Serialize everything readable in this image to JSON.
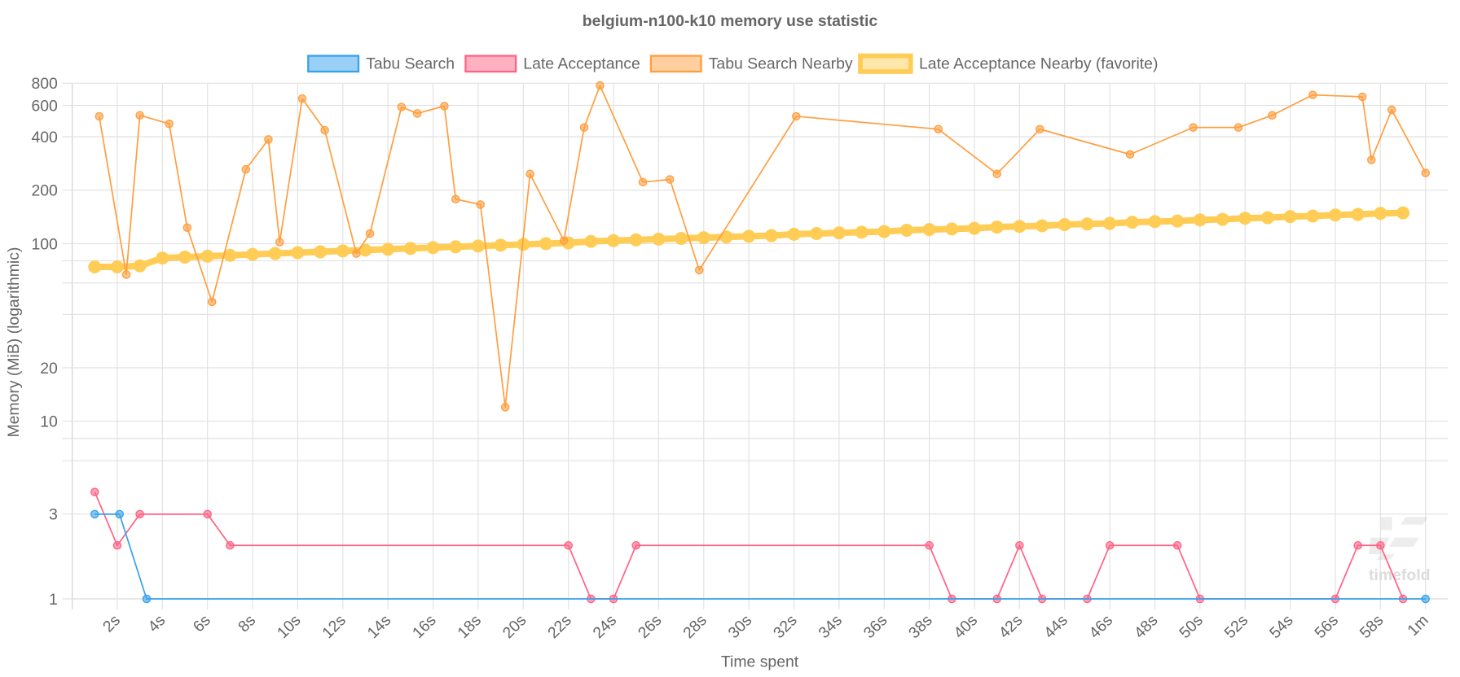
{
  "chart_data": {
    "type": "line",
    "title": "belgium-n100-k10 memory use statistic",
    "xlabel": "Time spent",
    "ylabel": "Memory (MiB) (logarithmic)",
    "x_unit": "seconds",
    "xlim": [
      0,
      60
    ],
    "ylim": [
      1,
      800
    ],
    "y_scale": "log",
    "grid": true,
    "legend_position": "top",
    "x_ticks": [
      {
        "value": 2,
        "label": "2s"
      },
      {
        "value": 4,
        "label": "4s"
      },
      {
        "value": 6,
        "label": "6s"
      },
      {
        "value": 8,
        "label": "8s"
      },
      {
        "value": 10,
        "label": "10s"
      },
      {
        "value": 12,
        "label": "12s"
      },
      {
        "value": 14,
        "label": "14s"
      },
      {
        "value": 16,
        "label": "16s"
      },
      {
        "value": 18,
        "label": "18s"
      },
      {
        "value": 20,
        "label": "20s"
      },
      {
        "value": 22,
        "label": "22s"
      },
      {
        "value": 24,
        "label": "24s"
      },
      {
        "value": 26,
        "label": "26s"
      },
      {
        "value": 28,
        "label": "28s"
      },
      {
        "value": 30,
        "label": "30s"
      },
      {
        "value": 32,
        "label": "32s"
      },
      {
        "value": 34,
        "label": "34s"
      },
      {
        "value": 36,
        "label": "36s"
      },
      {
        "value": 38,
        "label": "38s"
      },
      {
        "value": 40,
        "label": "40s"
      },
      {
        "value": 42,
        "label": "42s"
      },
      {
        "value": 44,
        "label": "44s"
      },
      {
        "value": 46,
        "label": "46s"
      },
      {
        "value": 48,
        "label": "48s"
      },
      {
        "value": 50,
        "label": "50s"
      },
      {
        "value": 52,
        "label": "52s"
      },
      {
        "value": 54,
        "label": "54s"
      },
      {
        "value": 56,
        "label": "56s"
      },
      {
        "value": 58,
        "label": "58s"
      },
      {
        "value": 60,
        "label": "1m"
      }
    ],
    "y_ticks": [
      {
        "value": 800,
        "label": "800"
      },
      {
        "value": 600,
        "label": "600"
      },
      {
        "value": 400,
        "label": "400"
      },
      {
        "value": 200,
        "label": "200"
      },
      {
        "value": 100,
        "label": "100"
      },
      {
        "value": 80,
        "label": ""
      },
      {
        "value": 60,
        "label": ""
      },
      {
        "value": 40,
        "label": ""
      },
      {
        "value": 20,
        "label": "20"
      },
      {
        "value": 10,
        "label": "10"
      },
      {
        "value": 8,
        "label": ""
      },
      {
        "value": 6,
        "label": ""
      },
      {
        "value": 3,
        "label": "3"
      },
      {
        "value": 1,
        "label": "1"
      }
    ],
    "series": [
      {
        "name": "Tabu Search",
        "color": "#36a2eb",
        "favorite": false,
        "x": [
          1,
          2.1,
          3.3,
          60
        ],
        "y": [
          3,
          3,
          1,
          1
        ]
      },
      {
        "name": "Late Acceptance",
        "color": "#ff6384",
        "favorite": false,
        "x": [
          1,
          2,
          3,
          6,
          7,
          22,
          23,
          24,
          25,
          38,
          39,
          41,
          42,
          43,
          45,
          46,
          49,
          50,
          56,
          57,
          58,
          59
        ],
        "y": [
          4,
          2,
          3,
          3,
          2,
          2,
          1,
          1,
          2,
          2,
          1,
          1,
          2,
          1,
          1,
          2,
          2,
          1,
          1,
          2,
          2,
          1
        ]
      },
      {
        "name": "Tabu Search Nearby",
        "color": "#ff9f40",
        "favorite": false,
        "x": [
          1.2,
          2.4,
          3.0,
          4.3,
          5.1,
          6.2,
          7.7,
          8.7,
          9.2,
          10.2,
          11.2,
          12.6,
          13.2,
          14.6,
          15.3,
          16.5,
          17.0,
          18.1,
          19.2,
          20.3,
          21.8,
          22.7,
          23.4,
          25.3,
          26.5,
          27.8,
          32.1,
          38.4,
          41.0,
          42.9,
          46.9,
          49.7,
          51.7,
          53.2,
          55.0,
          57.2,
          57.6,
          58.5,
          60.0
        ],
        "y": [
          521,
          67,
          528,
          473,
          123,
          47,
          262,
          386,
          102,
          656,
          435,
          88,
          114,
          588,
          541,
          595,
          178,
          166,
          12,
          247,
          104,
          451,
          777,
          222,
          230,
          71,
          521,
          441,
          247,
          441,
          318,
          451,
          451,
          528,
          688,
          671,
          296,
          567,
          250
        ]
      },
      {
        "name": "Late Acceptance Nearby (favorite)",
        "color": "#ffcd56",
        "favorite": true,
        "x": [
          1,
          2,
          3,
          4,
          5,
          6,
          7,
          8,
          9,
          10,
          11,
          12,
          13,
          14,
          15,
          16,
          17,
          18,
          19,
          20,
          21,
          22,
          23,
          24,
          25,
          26,
          27,
          28,
          29,
          30,
          31,
          32,
          33,
          34,
          35,
          36,
          37,
          38,
          39,
          40,
          41,
          42,
          43,
          44,
          45,
          46,
          47,
          48,
          49,
          50,
          51,
          52,
          53,
          54,
          55,
          56,
          57,
          58,
          59
        ],
        "y": [
          74,
          74,
          75,
          83,
          84,
          85,
          86,
          87,
          88,
          89,
          90,
          91,
          92,
          93,
          94,
          95,
          96,
          97,
          98,
          99,
          100,
          101,
          103,
          104,
          105,
          106,
          107,
          108,
          109,
          110,
          111,
          113,
          114,
          115,
          116,
          117,
          119,
          120,
          121,
          122,
          124,
          125,
          126,
          128,
          129,
          130,
          132,
          133,
          134,
          136,
          137,
          139,
          140,
          142,
          143,
          145,
          146,
          148,
          149
        ]
      }
    ]
  },
  "watermark": {
    "text": "timefold"
  }
}
